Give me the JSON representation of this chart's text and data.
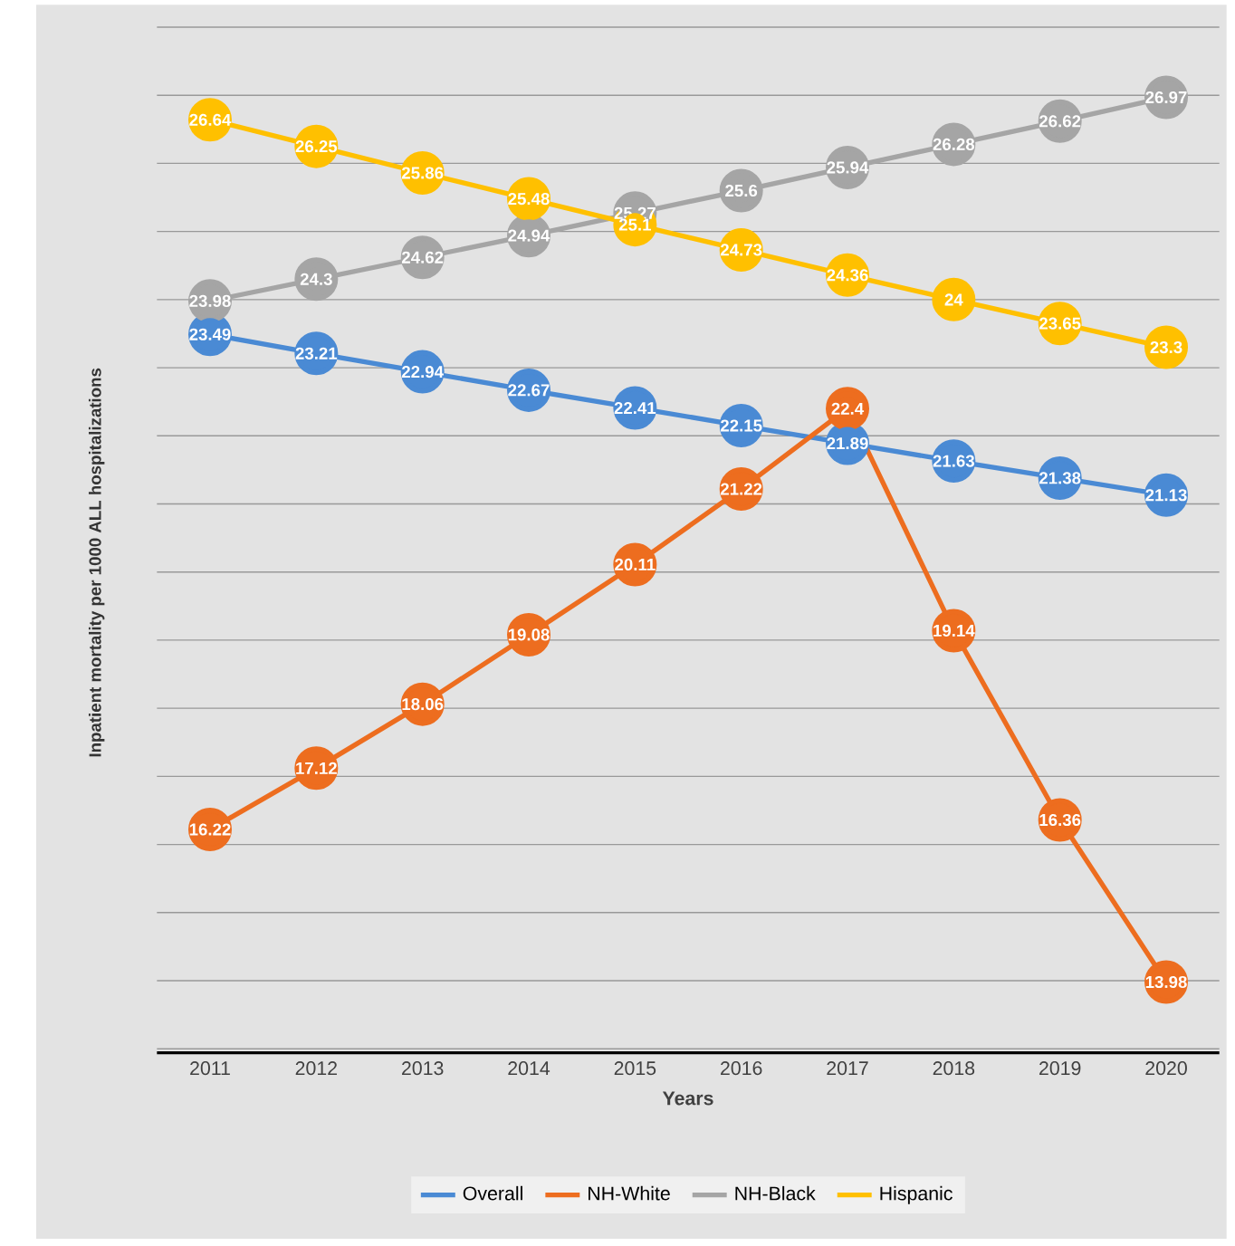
{
  "chart_data": {
    "type": "line",
    "xlabel": "Years",
    "ylabel": "Inpatient mortality per 1000 ALL hospitalizations",
    "categories": [
      "2011",
      "2012",
      "2013",
      "2014",
      "2015",
      "2016",
      "2017",
      "2018",
      "2019",
      "2020"
    ],
    "series": [
      {
        "name": "Overall",
        "color": "#4a8ad4",
        "values": [
          23.49,
          23.21,
          22.94,
          22.67,
          22.41,
          22.15,
          21.89,
          21.63,
          21.38,
          21.13
        ]
      },
      {
        "name": "NH-White",
        "color": "#ed6d1f",
        "values": [
          16.22,
          17.12,
          18.06,
          19.08,
          20.11,
          21.22,
          22.4,
          19.14,
          16.36,
          13.98
        ]
      },
      {
        "name": "NH-Black",
        "color": "#a5a5a5",
        "values": [
          23.98,
          24.3,
          24.62,
          24.94,
          25.27,
          25.6,
          25.94,
          26.28,
          26.62,
          26.97
        ]
      },
      {
        "name": "Hispanic",
        "color": "#ffc000",
        "values": [
          26.64,
          26.25,
          25.86,
          25.48,
          25.1,
          24.73,
          24.36,
          24,
          23.65,
          23.3
        ]
      }
    ],
    "tick_labels": "x",
    "grid": "y",
    "legend": "bottom",
    "marker": "circle",
    "line_style": "solid",
    "data_labels": true
  }
}
